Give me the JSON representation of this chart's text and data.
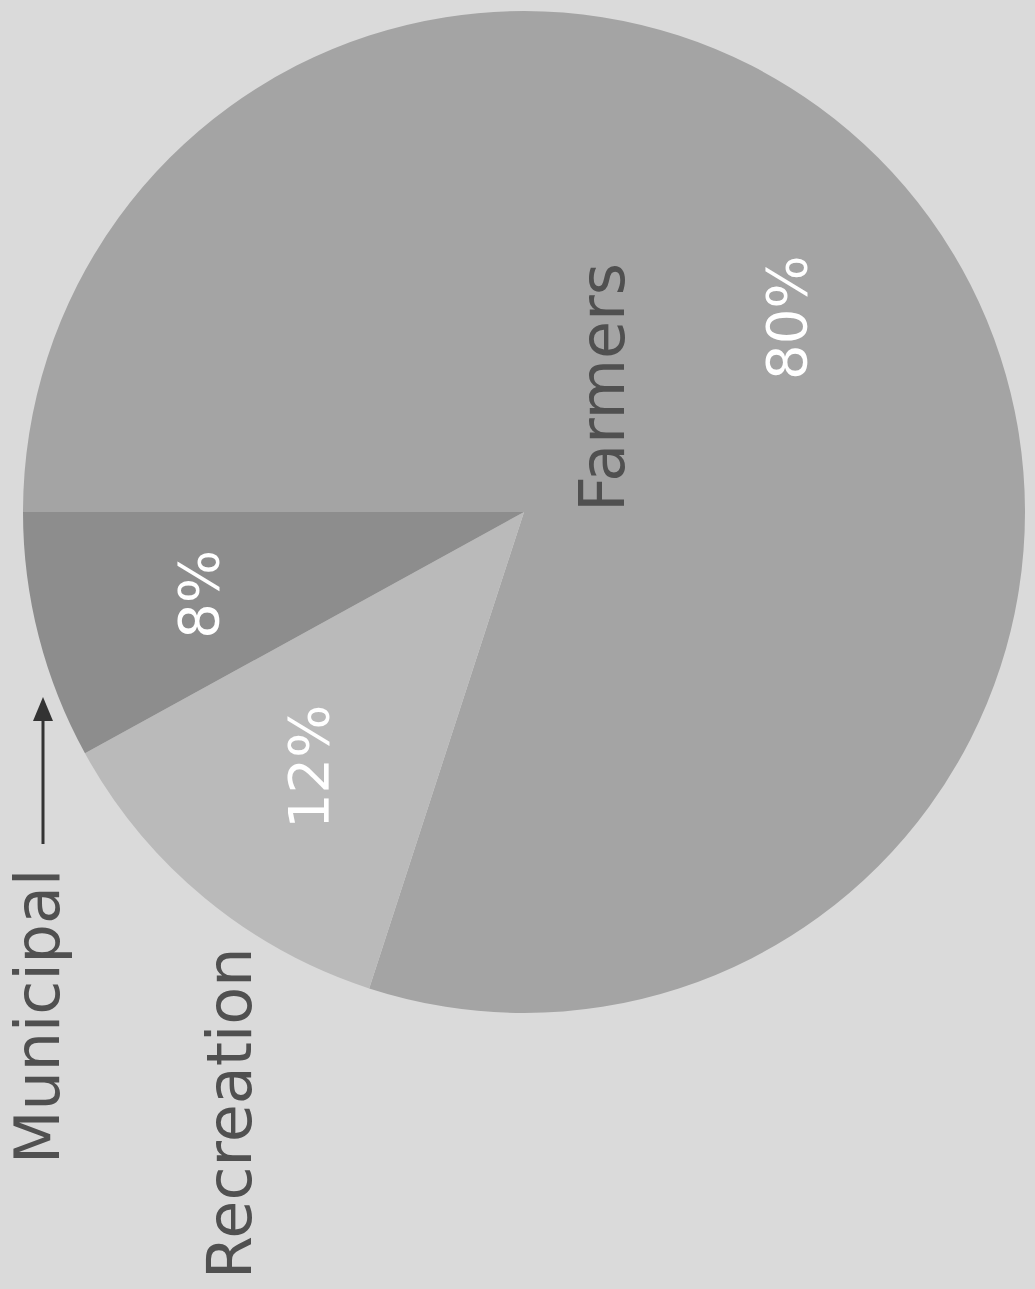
{
  "chart_data": {
    "type": "pie",
    "categories": [
      "Farmers",
      "Recreation",
      "Municipal"
    ],
    "values": [
      80,
      12,
      8
    ],
    "value_labels": [
      "80%",
      "12%",
      "8%"
    ],
    "colors": [
      "#a4a4a4",
      "#bababa",
      "#8d8d8d"
    ],
    "legend": false
  }
}
